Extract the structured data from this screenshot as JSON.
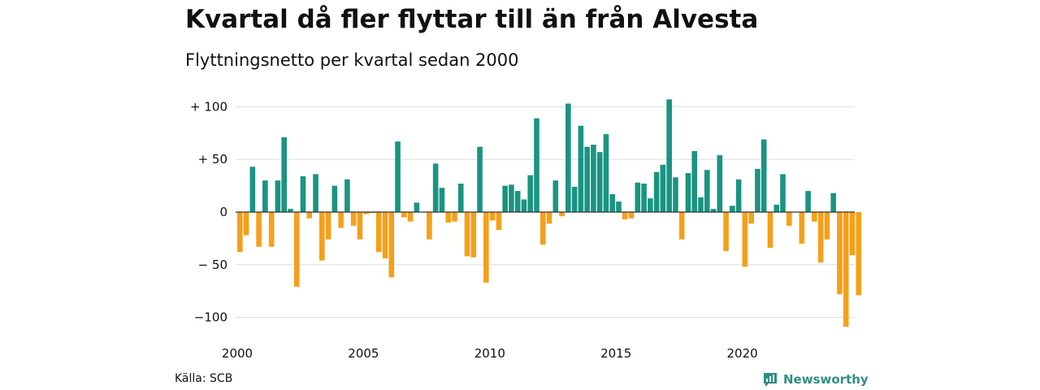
{
  "header": {
    "title": "Kvartal då fler flyttar till än från Alvesta",
    "subtitle": "Flyttningsnetto per kvartal sedan 2000"
  },
  "footer": {
    "source": "Källa: SCB",
    "brand": "Newsworthy",
    "brand_icon": "newsworthy-logo-icon"
  },
  "colors": {
    "positive": "#1a9482",
    "negative": "#f5a01a",
    "grid": "#dddddd",
    "zero_line": "#333333",
    "brand": "#2f8f84"
  },
  "chart_data": {
    "type": "bar",
    "title": "Kvartal då fler flyttar till än från Alvesta",
    "subtitle": "Flyttningsnetto per kvartal sedan 2000",
    "xlabel": "",
    "ylabel": "",
    "x_start": "2000 Q1",
    "x_tick_labels": [
      "2000",
      "2005",
      "2010",
      "2015",
      "2020"
    ],
    "y_ticks": [
      100,
      50,
      0,
      -50,
      -100
    ],
    "y_tick_labels": [
      "+ 100",
      "+  50",
      "0",
      "− 50",
      "−100"
    ],
    "ylim": [
      -110,
      110
    ],
    "grid": true,
    "legend": "none",
    "values": [
      -38,
      -22,
      43,
      -33,
      30,
      -33,
      30,
      71,
      3,
      -71,
      34,
      -6,
      36,
      -46,
      -26,
      25,
      -15,
      31,
      -13,
      -26,
      -2,
      -1,
      -38,
      -44,
      -62,
      67,
      -5,
      -9,
      9,
      0,
      -26,
      46,
      23,
      -10,
      -9,
      27,
      -42,
      -43,
      62,
      -67,
      -8,
      -17,
      25,
      26,
      20,
      12,
      35,
      89,
      -31,
      -11,
      30,
      -4,
      103,
      24,
      82,
      62,
      64,
      57,
      74,
      17,
      10,
      -7,
      -6,
      28,
      27,
      13,
      38,
      45,
      107,
      33,
      -26,
      37,
      58,
      14,
      40,
      3,
      54,
      -37,
      6,
      31,
      -52,
      -11,
      41,
      69,
      -34,
      7,
      36,
      -13,
      0,
      -30,
      20,
      -9,
      -48,
      -26,
      18,
      -78,
      -109,
      -41,
      -79
    ]
  }
}
